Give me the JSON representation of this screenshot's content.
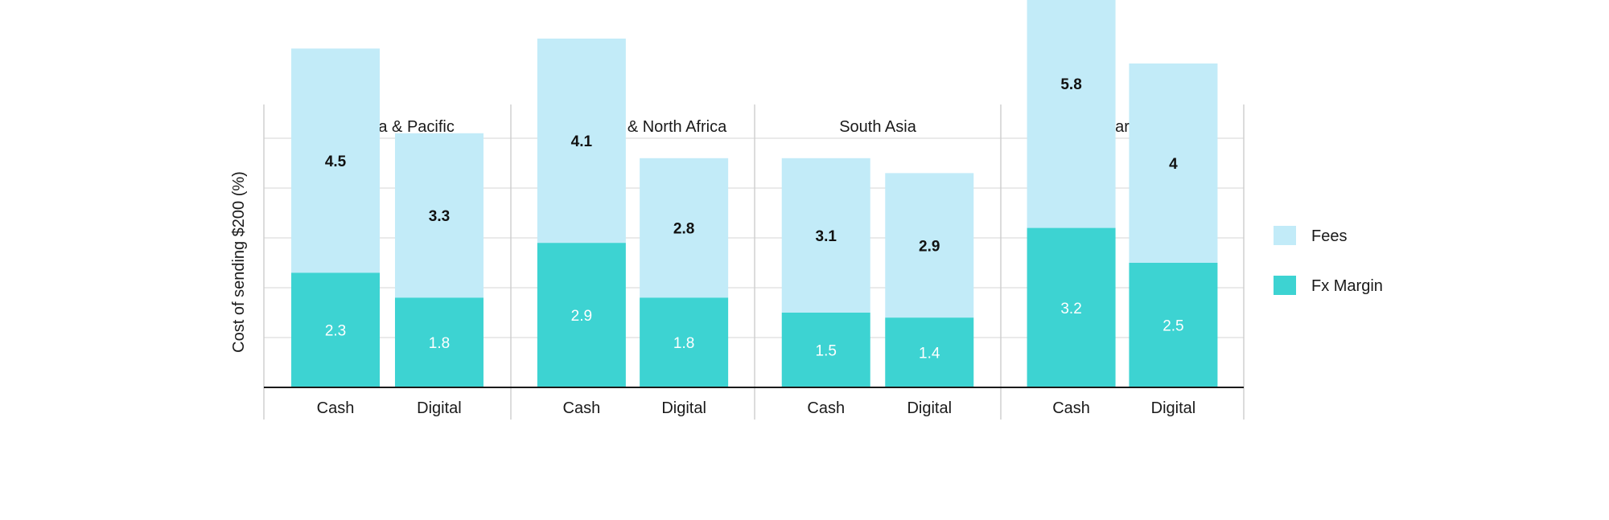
{
  "chart_data": {
    "type": "bar",
    "stacked": true,
    "ylabel": "Cost of sending $200 (%)",
    "xlabel": "",
    "ylim": [
      0,
      10
    ],
    "grid": true,
    "legend_position": "right",
    "panels": [
      {
        "title": "East Asia & Pacific",
        "categories": [
          "Cash",
          "Digital"
        ],
        "fx_margin": [
          2.3,
          1.8
        ],
        "fees": [
          4.5,
          3.3
        ]
      },
      {
        "title": "Middle East & North Africa",
        "categories": [
          "Cash",
          "Digital"
        ],
        "fx_margin": [
          2.9,
          1.8
        ],
        "fees": [
          4.1,
          2.8
        ]
      },
      {
        "title": "South Asia",
        "categories": [
          "Cash",
          "Digital"
        ],
        "fx_margin": [
          1.5,
          1.4
        ],
        "fees": [
          3.1,
          2.9
        ]
      },
      {
        "title": "Sub-Saharan Africa",
        "categories": [
          "Cash",
          "Digital"
        ],
        "fx_margin": [
          3.2,
          2.5
        ],
        "fees": [
          5.8,
          4
        ]
      }
    ],
    "series": [
      {
        "name": "Fees",
        "color": "#c2ebf8"
      },
      {
        "name": "Fx Margin",
        "color": "#3dd3d2"
      }
    ]
  }
}
